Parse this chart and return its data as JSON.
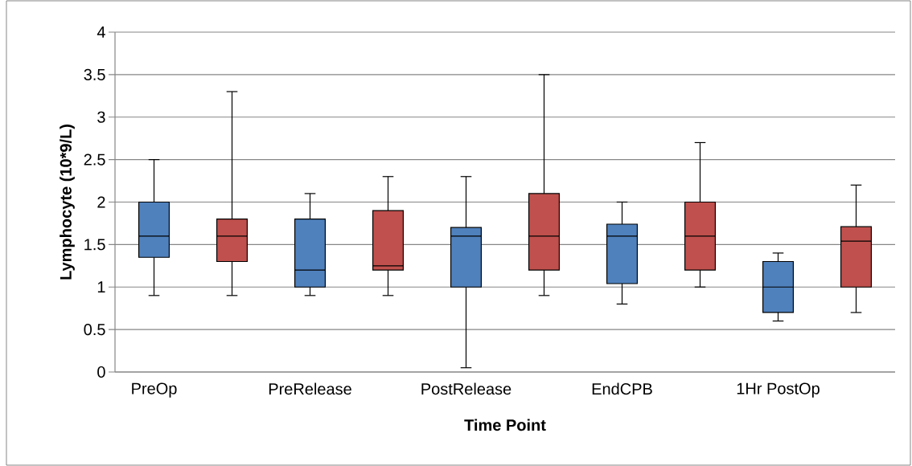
{
  "chart_data": {
    "type": "box",
    "xlabel": "Time Point",
    "ylabel": "Lymphocyte (10*9/L)",
    "categories": [
      "PreOp",
      null,
      "PreRelease",
      null,
      "PostRelease",
      null,
      "EndCPB",
      null,
      "1Hr PostOp",
      null
    ],
    "colors": [
      "#4f81bd",
      "#c0504d",
      "#4f81bd",
      "#c0504d",
      "#4f81bd",
      "#c0504d",
      "#4f81bd",
      "#c0504d",
      "#4f81bd",
      "#c0504d"
    ],
    "boxes": [
      {
        "low": 0.9,
        "q1": 1.35,
        "median": 1.6,
        "q3": 2.0,
        "high": 2.5
      },
      {
        "low": 0.9,
        "q1": 1.3,
        "median": 1.6,
        "q3": 1.8,
        "high": 3.3
      },
      {
        "low": 0.9,
        "q1": 1.0,
        "median": 1.2,
        "q3": 1.8,
        "high": 2.1
      },
      {
        "low": 0.9,
        "q1": 1.2,
        "median": 1.25,
        "q3": 1.9,
        "high": 2.3
      },
      {
        "low": 0.05,
        "q1": 1.0,
        "median": 1.6,
        "q3": 1.7,
        "high": 2.3
      },
      {
        "low": 0.9,
        "q1": 1.2,
        "median": 1.6,
        "q3": 2.1,
        "high": 3.5
      },
      {
        "low": 0.8,
        "q1": 1.04,
        "median": 1.6,
        "q3": 1.74,
        "high": 2.0
      },
      {
        "low": 1.0,
        "q1": 1.2,
        "median": 1.6,
        "q3": 2.0,
        "high": 2.7
      },
      {
        "low": 0.6,
        "q1": 0.7,
        "median": 1.0,
        "q3": 1.3,
        "high": 1.4
      },
      {
        "low": 0.7,
        "q1": 1.0,
        "median": 1.54,
        "q3": 1.71,
        "high": 2.2
      }
    ],
    "ylim": [
      0,
      4
    ],
    "yticks": [
      0,
      0.5,
      1,
      1.5,
      2,
      2.5,
      3,
      3.5,
      4
    ],
    "grid": "y"
  }
}
